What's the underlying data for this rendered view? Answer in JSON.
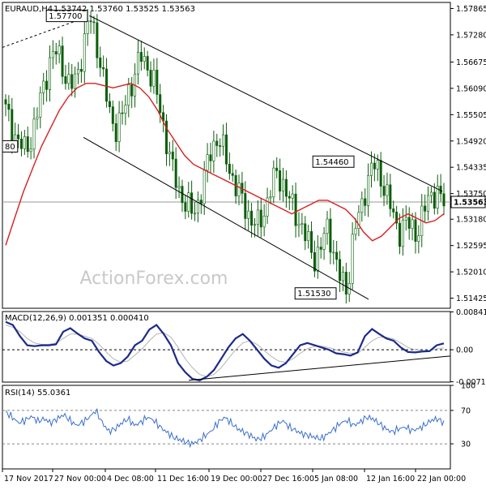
{
  "header": {
    "symbol": "EURAUD,H4",
    "ohlc": "1.53742 1.53760 1.53525 1.53563"
  },
  "watermark": "ActionForex.com",
  "colors": {
    "candle": "#0b5e0b",
    "ma": "#d62020",
    "macd": "#1c2a8a",
    "signal": "#b4b4b4",
    "rsi": "#3a6fd0",
    "grid": "#000000",
    "current": "#9a9a9a"
  },
  "chart_data": [
    {
      "type": "candlestick",
      "title": "EURAUD,H4",
      "ylim": [
        1.512,
        1.58
      ],
      "y_ticks": [
        "1.57865",
        "1.57280",
        "1.56675",
        "1.56090",
        "1.55505",
        "1.54920",
        "1.54335",
        "1.53750",
        "1.53180",
        "1.52595",
        "1.52010",
        "1.51425"
      ],
      "x_ticks": [
        "17 Nov 2017",
        "27 Nov 00:00",
        "4 Dec 08:00",
        "11 Dec 16:00",
        "19 Dec 00:00",
        "27 Dec 16:00",
        "5 Jan 08:00",
        "12 Jan 16:00",
        "22 Jan 00:00"
      ],
      "current_price": "1.53563",
      "annotations": [
        {
          "label": "1.57700",
          "value": 1.577
        },
        {
          "label": "1.54460",
          "value": 1.5446
        },
        {
          "label": "1.51530",
          "value": 1.5153
        },
        {
          "label": "80",
          "value": 1.548
        }
      ],
      "close_path": [
        1.556,
        1.552,
        1.549,
        1.547,
        1.55,
        1.556,
        1.562,
        1.568,
        1.569,
        1.565,
        1.561,
        1.563,
        1.57,
        1.577,
        1.572,
        1.564,
        1.556,
        1.552,
        1.554,
        1.56,
        1.564,
        1.568,
        1.566,
        1.562,
        1.556,
        1.549,
        1.542,
        1.538,
        1.535,
        1.533,
        1.536,
        1.542,
        1.548,
        1.55,
        1.546,
        1.542,
        1.538,
        1.535,
        1.532,
        1.53,
        1.533,
        1.538,
        1.542,
        1.54,
        1.536,
        1.533,
        1.53,
        1.526,
        1.523,
        1.526,
        1.53,
        1.524,
        1.518,
        1.516,
        1.529,
        1.533,
        1.54,
        1.544,
        1.542,
        1.538,
        1.533,
        1.529,
        1.531,
        1.53,
        1.529,
        1.534,
        1.538,
        1.537,
        1.5356
      ],
      "ma_path": [
        1.526,
        1.532,
        1.538,
        1.543,
        1.548,
        1.552,
        1.556,
        1.559,
        1.561,
        1.562,
        1.562,
        1.5615,
        1.561,
        1.5615,
        1.562,
        1.561,
        1.559,
        1.556,
        1.552,
        1.549,
        1.546,
        1.544,
        1.543,
        1.542,
        1.541,
        1.54,
        1.539,
        1.538,
        1.537,
        1.536,
        1.535,
        1.534,
        1.533,
        1.534,
        1.535,
        1.536,
        1.536,
        1.535,
        1.534,
        1.532,
        1.529,
        1.527,
        1.528,
        1.53,
        1.532,
        1.533,
        1.532,
        1.531,
        1.5315,
        1.533
      ],
      "channel_upper": [
        [
          1.577,
          1.538
        ]
      ],
      "channel_lower": [
        [
          1.55,
          1.514
        ]
      ],
      "dashed_line": [
        1.57,
        1.577
      ]
    },
    {
      "type": "line",
      "title": "MACD(12,26,9) 0.001351 0.000410",
      "ylim": [
        -0.0072,
        0.0085
      ],
      "y_ticks": [
        "0.008419",
        "0.00",
        "-0.007128"
      ],
      "macd": [
        0.0062,
        0.0055,
        0.003,
        0.001,
        0.0008,
        0.001,
        0.001,
        0.0012,
        0.004,
        0.0048,
        0.0036,
        0.0025,
        0.002,
        -0.0005,
        -0.0025,
        -0.0035,
        -0.003,
        -0.0015,
        0.001,
        0.002,
        0.0045,
        0.0055,
        0.0035,
        0.001,
        -0.003,
        -0.005,
        -0.0065,
        -0.0068,
        -0.006,
        -0.0045,
        -0.002,
        0.0005,
        0.0025,
        0.0035,
        0.002,
        0.0,
        -0.002,
        -0.0035,
        -0.004,
        -0.003,
        -0.001,
        0.001,
        0.0015,
        0.001,
        0.0005,
        0.0,
        -0.0008,
        -0.001,
        -0.0013,
        -0.0006,
        0.003,
        0.0046,
        0.0035,
        0.0025,
        0.002,
        0.0005,
        -0.0005,
        -0.0006,
        -0.0004,
        -0.0003,
        0.001,
        0.0014
      ],
      "signal": [
        0.0055,
        0.005,
        0.004,
        0.0025,
        0.0015,
        0.0012,
        0.0012,
        0.0015,
        0.0025,
        0.0035,
        0.0035,
        0.003,
        0.0025,
        0.0012,
        -0.0005,
        -0.002,
        -0.0028,
        -0.0025,
        -0.0012,
        0.0002,
        0.002,
        0.0035,
        0.0038,
        0.0028,
        0.0005,
        -0.002,
        -0.004,
        -0.0055,
        -0.006,
        -0.0055,
        -0.004,
        -0.002,
        0.0,
        0.0015,
        0.002,
        0.0012,
        -0.0002,
        -0.0015,
        -0.0025,
        -0.0028,
        -0.002,
        -0.0008,
        0.0002,
        0.0008,
        0.0008,
        0.0005,
        0.0,
        -0.0005,
        -0.0008,
        -0.0008,
        0.0005,
        0.002,
        0.0028,
        0.0028,
        0.0024,
        0.0015,
        0.0005,
        0.0,
        -0.0002,
        -0.0002,
        0.0002,
        0.0004
      ]
    },
    {
      "type": "line",
      "title": "RSI(14) 55.0361",
      "ylim": [
        0,
        100
      ],
      "y_ticks": [
        "100",
        "70",
        "30",
        "0"
      ],
      "rsi": [
        68,
        62,
        55,
        58,
        63,
        57,
        60,
        55,
        60,
        65,
        58,
        52,
        56,
        62,
        70,
        55,
        45,
        48,
        55,
        60,
        52,
        56,
        62,
        58,
        50,
        44,
        38,
        35,
        32,
        30,
        34,
        40,
        46,
        56,
        62,
        55,
        48,
        44,
        40,
        35,
        38,
        45,
        52,
        58,
        50,
        46,
        42,
        40,
        38,
        36,
        42,
        48,
        55,
        58,
        52,
        56,
        62,
        60,
        54,
        48,
        44,
        48,
        50,
        46,
        48,
        52,
        58,
        60,
        55
      ]
    }
  ]
}
